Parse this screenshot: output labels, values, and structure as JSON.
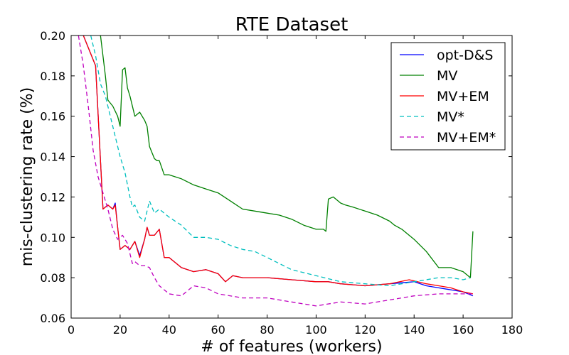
{
  "chart_data": {
    "type": "line",
    "title": "RTE Dataset",
    "xlabel": "# of features (workers)",
    "ylabel": "mis-clustering rate (%)",
    "xlim": [
      0,
      180
    ],
    "ylim": [
      0.06,
      0.2
    ],
    "xticks": [
      "0",
      "20",
      "40",
      "60",
      "80",
      "100",
      "120",
      "140",
      "160",
      "180"
    ],
    "yticks": [
      "0.06",
      "0.08",
      "0.10",
      "0.12",
      "0.14",
      "0.16",
      "0.18",
      "0.20"
    ],
    "grid": false,
    "legend_position": "top-right",
    "series": [
      {
        "name": "opt-D&S",
        "color": "#0000ff",
        "dash": "solid",
        "x": [
          5,
          10,
          13,
          15,
          17,
          18,
          19,
          20,
          22,
          24,
          26,
          28,
          30,
          31,
          32,
          34,
          36,
          38,
          40,
          45,
          50,
          55,
          60,
          63,
          66,
          70,
          80,
          90,
          100,
          105,
          110,
          120,
          130,
          140,
          145,
          150,
          155,
          160,
          164
        ],
        "y": [
          0.2,
          0.185,
          0.114,
          0.116,
          0.114,
          0.117,
          0.105,
          0.094,
          0.096,
          0.094,
          0.098,
          0.091,
          0.099,
          0.105,
          0.101,
          0.101,
          0.104,
          0.09,
          0.09,
          0.085,
          0.083,
          0.084,
          0.082,
          0.078,
          0.081,
          0.08,
          0.08,
          0.079,
          0.078,
          0.078,
          0.077,
          0.076,
          0.077,
          0.078,
          0.076,
          0.075,
          0.074,
          0.073,
          0.071
        ]
      },
      {
        "name": "MV",
        "color": "#008000",
        "dash": "solid",
        "x": [
          12,
          14,
          15,
          17,
          19,
          20,
          21,
          22,
          23,
          24,
          26,
          28,
          30,
          31,
          32,
          34,
          35,
          36,
          38,
          40,
          45,
          50,
          55,
          60,
          65,
          70,
          75,
          80,
          85,
          90,
          95,
          100,
          103,
          104,
          105,
          107,
          110,
          112,
          115,
          120,
          125,
          130,
          132,
          135,
          140,
          145,
          150,
          155,
          160,
          163,
          164
        ],
        "y": [
          0.2,
          0.18,
          0.168,
          0.165,
          0.16,
          0.155,
          0.183,
          0.184,
          0.174,
          0.17,
          0.16,
          0.162,
          0.158,
          0.155,
          0.145,
          0.139,
          0.138,
          0.138,
          0.131,
          0.131,
          0.129,
          0.126,
          0.124,
          0.122,
          0.118,
          0.114,
          0.113,
          0.112,
          0.111,
          0.109,
          0.106,
          0.104,
          0.104,
          0.103,
          0.119,
          0.12,
          0.117,
          0.116,
          0.115,
          0.113,
          0.111,
          0.108,
          0.106,
          0.104,
          0.099,
          0.093,
          0.085,
          0.085,
          0.083,
          0.08,
          0.103
        ]
      },
      {
        "name": "MV+EM",
        "color": "#ff0000",
        "dash": "solid",
        "x": [
          5,
          10,
          13,
          15,
          17,
          18,
          19,
          20,
          22,
          24,
          26,
          28,
          30,
          31,
          32,
          34,
          36,
          38,
          40,
          45,
          50,
          55,
          60,
          63,
          66,
          70,
          80,
          90,
          100,
          105,
          110,
          120,
          130,
          138,
          145,
          150,
          155,
          160,
          164
        ],
        "y": [
          0.2,
          0.185,
          0.114,
          0.116,
          0.114,
          0.116,
          0.105,
          0.094,
          0.096,
          0.094,
          0.098,
          0.09,
          0.099,
          0.105,
          0.101,
          0.101,
          0.104,
          0.09,
          0.09,
          0.085,
          0.083,
          0.084,
          0.082,
          0.078,
          0.081,
          0.08,
          0.08,
          0.079,
          0.078,
          0.078,
          0.077,
          0.076,
          0.077,
          0.079,
          0.077,
          0.076,
          0.075,
          0.073,
          0.072
        ]
      },
      {
        "name": "MV*",
        "color": "#00bfbf",
        "dash": "dashed",
        "x": [
          8,
          10,
          12,
          14,
          16,
          18,
          20,
          22,
          24,
          25,
          26,
          28,
          30,
          32,
          34,
          36,
          40,
          45,
          50,
          55,
          60,
          65,
          70,
          75,
          80,
          90,
          100,
          110,
          120,
          130,
          140,
          145,
          150,
          155,
          160,
          163
        ],
        "y": [
          0.2,
          0.19,
          0.176,
          0.17,
          0.16,
          0.15,
          0.14,
          0.132,
          0.12,
          0.115,
          0.116,
          0.11,
          0.108,
          0.118,
          0.112,
          0.114,
          0.11,
          0.106,
          0.1,
          0.1,
          0.099,
          0.096,
          0.094,
          0.093,
          0.09,
          0.084,
          0.081,
          0.078,
          0.077,
          0.076,
          0.078,
          0.079,
          0.08,
          0.08,
          0.079,
          0.08
        ]
      },
      {
        "name": "MV+EM*",
        "color": "#bf00bf",
        "dash": "dashed",
        "x": [
          3,
          5,
          7,
          9,
          11,
          13,
          15,
          17,
          19,
          21,
          23,
          25,
          26,
          28,
          30,
          32,
          34,
          36,
          38,
          40,
          45,
          50,
          55,
          60,
          70,
          80,
          90,
          100,
          110,
          120,
          130,
          140,
          150,
          160,
          164
        ],
        "y": [
          0.2,
          0.185,
          0.165,
          0.143,
          0.13,
          0.122,
          0.114,
          0.104,
          0.099,
          0.101,
          0.097,
          0.087,
          0.088,
          0.086,
          0.086,
          0.085,
          0.08,
          0.076,
          0.074,
          0.072,
          0.071,
          0.076,
          0.075,
          0.072,
          0.07,
          0.07,
          0.068,
          0.066,
          0.068,
          0.067,
          0.069,
          0.071,
          0.072,
          0.072,
          0.072
        ]
      }
    ]
  }
}
